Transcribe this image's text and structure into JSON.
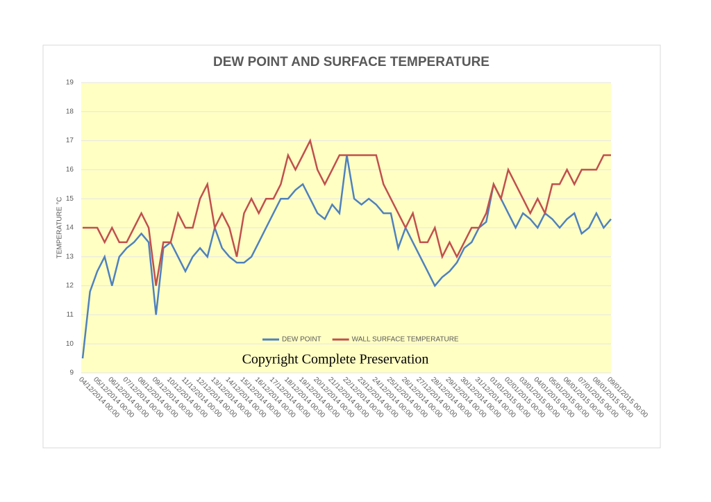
{
  "chart_data": {
    "type": "line",
    "title": "DEW POINT AND SURFACE TEMPERATURE",
    "y_label": "TEMPERATURE °C",
    "annotation": "Copyright Complete Preservation",
    "categories": [
      "04/12/2014 00:00",
      null,
      "05/12/2014 00:00",
      null,
      "06/12/2014 00:00",
      null,
      "07/12/2014 00:00",
      null,
      "08/12/2014 00:00",
      null,
      "09/12/2014 00:00",
      null,
      "10/12/2014 00:00",
      null,
      "11/12/2014 00:00",
      null,
      "12/12/2014 00:00",
      null,
      "13/12/2014 00:00",
      null,
      "14/12/2014 00:00",
      null,
      "15/12/2014 00:00",
      null,
      "16/12/2014 00:00",
      null,
      "17/12/2014 00:00",
      null,
      "18/12/2014 00:00",
      null,
      "19/12/2014 00:00",
      null,
      "20/12/2014 00:00",
      null,
      "21/12/2014 00:00",
      null,
      "22/12/2014 00:00",
      null,
      "23/12/2014 00:00",
      null,
      "24/12/2014 00:00",
      null,
      "25/12/2014 00:00",
      null,
      "26/12/2014 00:00",
      null,
      "27/12/2014 00:00",
      null,
      "28/12/2014 00:00",
      null,
      "29/12/2014 00:00",
      null,
      "30/12/2014 00:00",
      null,
      "31/12/2014 00:00",
      null,
      "01/01/2015 00:00",
      null,
      "02/01/2015 00:00",
      null,
      "03/01/2015 00:00",
      null,
      "04/01/2015 00:00",
      null,
      "05/01/2015 00:00",
      null,
      "06/01/2015 00:00",
      null,
      "07/01/2015 00:00",
      null,
      "08/01/2015 00:00",
      null,
      "09/01/2015 00:00"
    ],
    "series": [
      {
        "name": "DEW POINT",
        "color": "#4f81bd",
        "values": [
          9.5,
          11.8,
          12.5,
          13.0,
          12.0,
          13.0,
          13.3,
          13.5,
          13.8,
          13.5,
          11.0,
          13.3,
          13.5,
          13.0,
          12.5,
          13.0,
          13.3,
          13.0,
          14.0,
          13.3,
          13.0,
          12.8,
          12.8,
          13.0,
          13.5,
          14.0,
          14.5,
          15.0,
          15.0,
          15.3,
          15.5,
          15.0,
          14.5,
          14.3,
          14.8,
          14.5,
          16.5,
          15.0,
          14.8,
          15.0,
          14.8,
          14.5,
          14.5,
          13.3,
          14.0,
          13.5,
          13.0,
          12.5,
          12.0,
          12.3,
          12.5,
          12.8,
          13.3,
          13.5,
          14.0,
          14.2,
          15.5,
          15.0,
          14.5,
          14.0,
          14.5,
          14.3,
          14.0,
          14.5,
          14.3,
          14.0,
          14.3,
          14.5,
          13.8,
          14.0,
          14.5,
          14.0,
          14.3
        ]
      },
      {
        "name": "WALL SURFACE TEMPERATURE",
        "color": "#c0504d",
        "values": [
          14.0,
          14.0,
          14.0,
          13.5,
          14.0,
          13.5,
          13.5,
          14.0,
          14.5,
          14.0,
          12.0,
          13.5,
          13.5,
          14.5,
          14.0,
          14.0,
          15.0,
          15.5,
          14.0,
          14.5,
          14.0,
          13.0,
          14.5,
          15.0,
          14.5,
          15.0,
          15.0,
          15.5,
          16.5,
          16.0,
          16.5,
          17.0,
          16.0,
          15.5,
          16.0,
          16.5,
          16.5,
          16.5,
          16.5,
          16.5,
          16.5,
          15.5,
          15.0,
          14.5,
          14.0,
          14.5,
          13.5,
          13.5,
          14.0,
          13.0,
          13.5,
          13.0,
          13.5,
          14.0,
          14.0,
          14.5,
          15.5,
          15.0,
          16.0,
          15.5,
          15.0,
          14.5,
          15.0,
          14.5,
          15.5,
          15.5,
          16.0,
          15.5,
          16.0,
          16.0,
          16.0,
          16.5,
          16.5
        ]
      }
    ],
    "ylim": [
      9,
      19
    ],
    "yticks": [
      9,
      10,
      11,
      12,
      13,
      14,
      15,
      16,
      17,
      18,
      19
    ],
    "grid": true,
    "legend": "bottom"
  }
}
